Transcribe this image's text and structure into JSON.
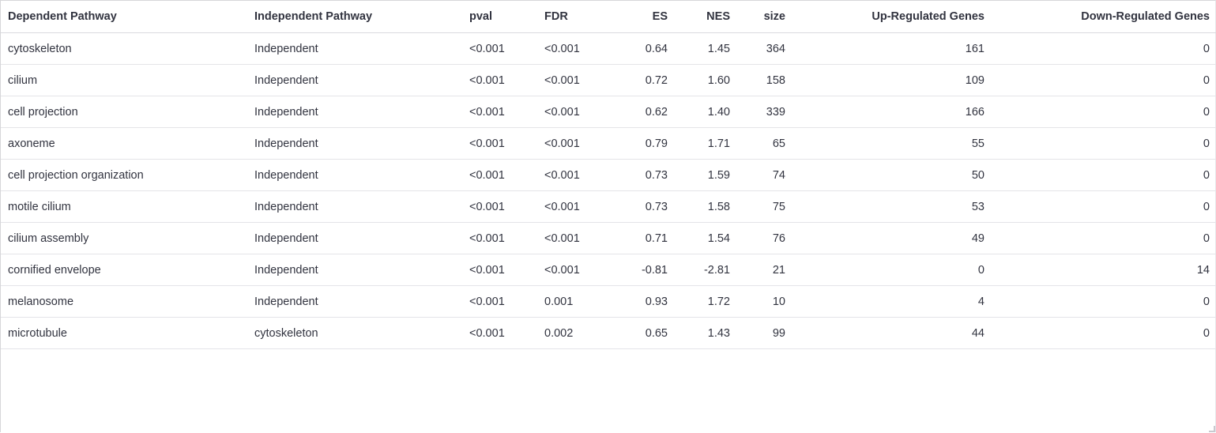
{
  "table": {
    "headers": [
      "Dependent Pathway",
      "Independent Pathway",
      "pval",
      "FDR",
      "ES",
      "NES",
      "size",
      "Up-Regulated Genes",
      "Down-Regulated Genes"
    ],
    "rows": [
      [
        "cytoskeleton",
        "Independent",
        "<0.001",
        "<0.001",
        "0.64",
        "1.45",
        "364",
        "161",
        "0"
      ],
      [
        "cilium",
        "Independent",
        "<0.001",
        "<0.001",
        "0.72",
        "1.60",
        "158",
        "109",
        "0"
      ],
      [
        "cell projection",
        "Independent",
        "<0.001",
        "<0.001",
        "0.62",
        "1.40",
        "339",
        "166",
        "0"
      ],
      [
        "axoneme",
        "Independent",
        "<0.001",
        "<0.001",
        "0.79",
        "1.71",
        "65",
        "55",
        "0"
      ],
      [
        "cell projection organization",
        "Independent",
        "<0.001",
        "<0.001",
        "0.73",
        "1.59",
        "74",
        "50",
        "0"
      ],
      [
        "motile cilium",
        "Independent",
        "<0.001",
        "<0.001",
        "0.73",
        "1.58",
        "75",
        "53",
        "0"
      ],
      [
        "cilium assembly",
        "Independent",
        "<0.001",
        "<0.001",
        "0.71",
        "1.54",
        "76",
        "49",
        "0"
      ],
      [
        "cornified envelope",
        "Independent",
        "<0.001",
        "<0.001",
        "-0.81",
        "-2.81",
        "21",
        "0",
        "14"
      ],
      [
        "melanosome",
        "Independent",
        "<0.001",
        "0.001",
        "0.93",
        "1.72",
        "10",
        "4",
        "0"
      ],
      [
        "microtubule",
        "cytoskeleton",
        "<0.001",
        "0.002",
        "0.65",
        "1.43",
        "99",
        "44",
        "0"
      ]
    ]
  },
  "colors": {
    "text": "#31333f",
    "border": "#e4e4e8",
    "background": "#ffffff"
  }
}
